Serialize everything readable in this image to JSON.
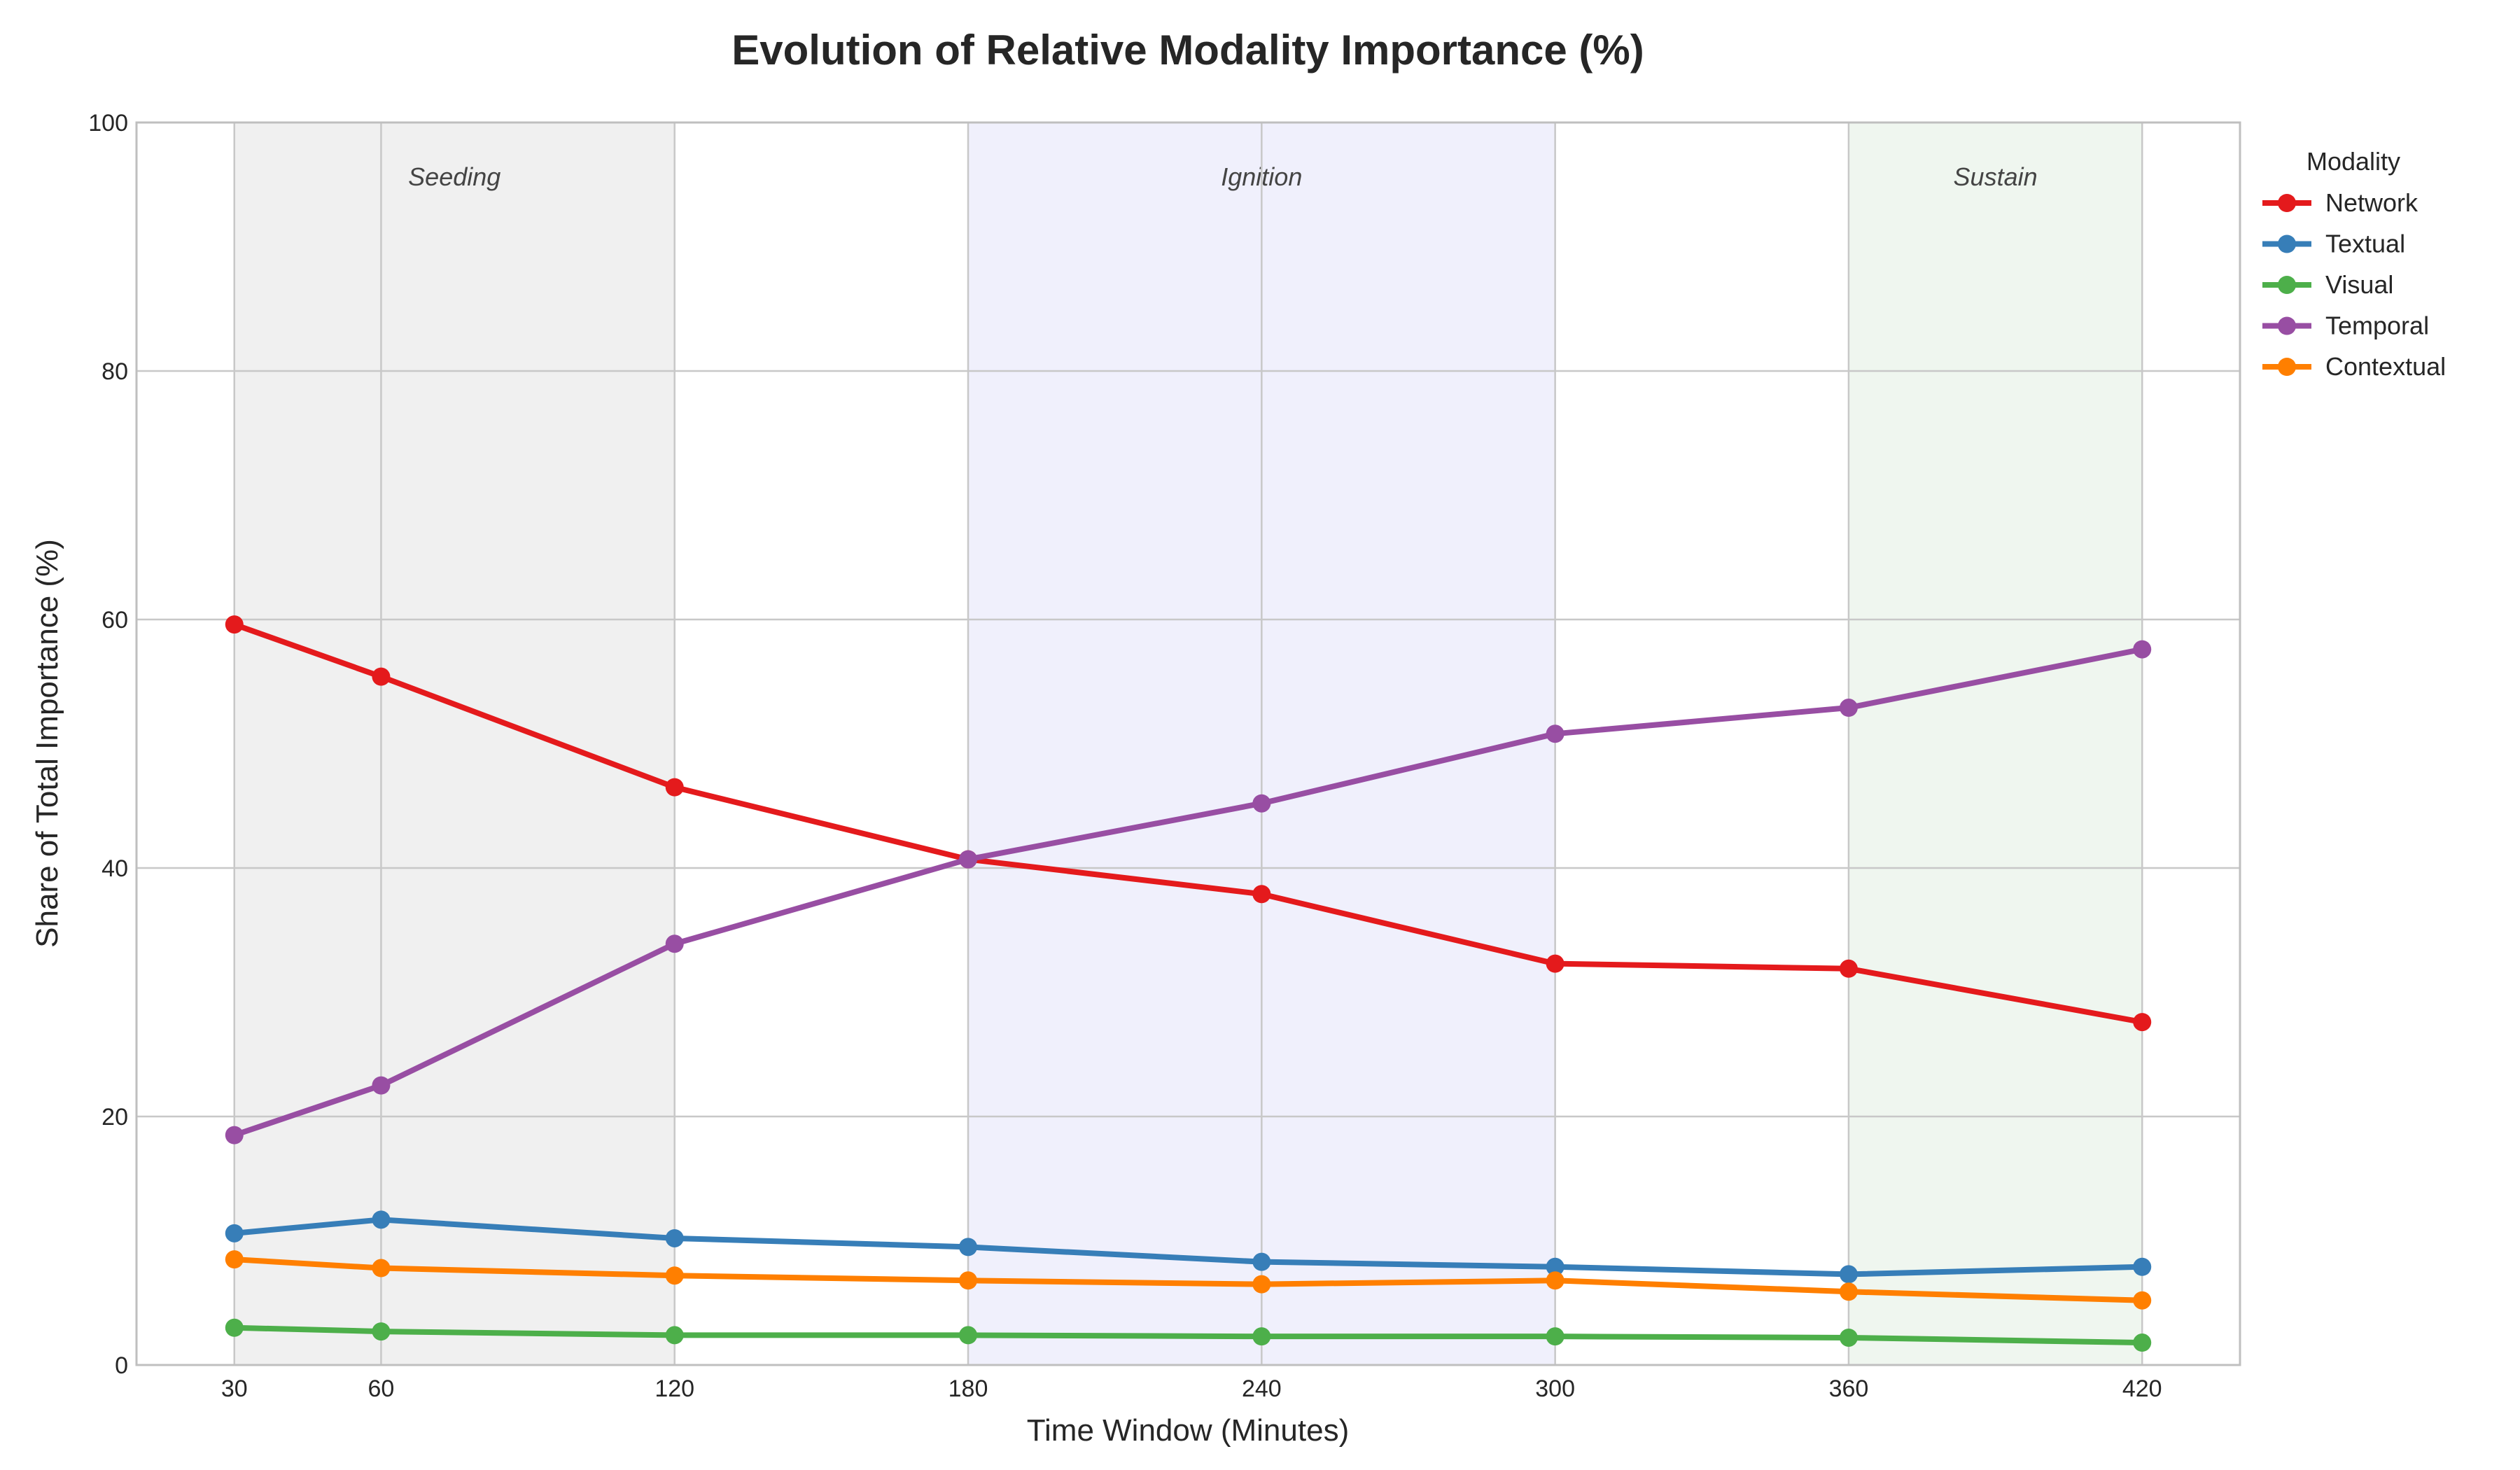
{
  "chart_data": {
    "type": "line",
    "title": "Evolution of Relative Modality Importance (%)",
    "xlabel": "Time Window (Minutes)",
    "ylabel": "Share of Total Importance (%)",
    "x": [
      30,
      60,
      120,
      180,
      240,
      300,
      360,
      420
    ],
    "x_ticks": [
      "30",
      "60",
      "120",
      "180",
      "240",
      "300",
      "360",
      "420"
    ],
    "xlim": [
      10,
      440
    ],
    "ylim": [
      0,
      100
    ],
    "y_ticks": [
      "0",
      "20",
      "40",
      "60",
      "80",
      "100"
    ],
    "grid": true,
    "legend": {
      "title": "Modality",
      "placement": "outside-right-top"
    },
    "regions": [
      {
        "label": "Seeding",
        "x_start": 30,
        "x_end": 120,
        "color": "#f0f0f0"
      },
      {
        "label": "Ignition",
        "x_start": 180,
        "x_end": 300,
        "color": "#f0f0fc"
      },
      {
        "label": "Sustain",
        "x_start": 360,
        "x_end": 420,
        "color": "#eff6ef"
      }
    ],
    "series": [
      {
        "name": "Network",
        "color": "#e41a1c",
        "values": [
          59.6,
          55.4,
          46.5,
          40.7,
          37.9,
          32.3,
          31.9,
          27.6
        ]
      },
      {
        "name": "Textual",
        "color": "#377eb8",
        "values": [
          10.6,
          11.7,
          10.2,
          9.5,
          8.3,
          7.9,
          7.3,
          7.9
        ]
      },
      {
        "name": "Visual",
        "color": "#4daf4a",
        "values": [
          3.0,
          2.7,
          2.4,
          2.4,
          2.3,
          2.3,
          2.2,
          1.8
        ]
      },
      {
        "name": "Temporal",
        "color": "#984ea3",
        "values": [
          18.5,
          22.5,
          33.9,
          40.7,
          45.2,
          50.8,
          52.9,
          57.6
        ]
      },
      {
        "name": "Contextual",
        "color": "#ff7f00",
        "values": [
          8.5,
          7.8,
          7.2,
          6.8,
          6.5,
          6.8,
          5.9,
          5.2
        ]
      }
    ]
  }
}
